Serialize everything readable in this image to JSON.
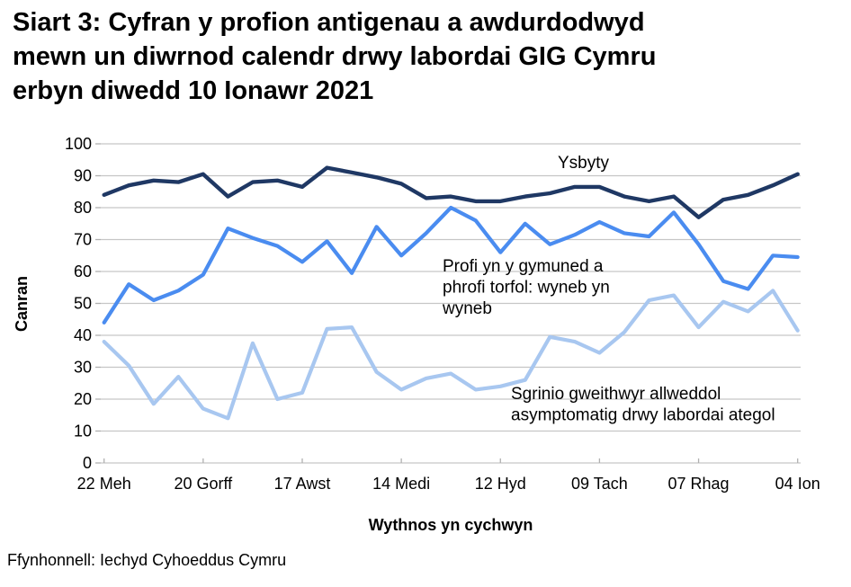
{
  "title": {
    "lines": [
      "Siart 3: Cyfran y profion antigenau a awdurdodwyd",
      "mewn un diwrnod calendr drwy labordai GIG Cymru",
      "erbyn diwedd 10 Ionawr 2021"
    ]
  },
  "source": "Ffynhonnell: Iechyd Cyhoeddus Cymru",
  "chart_data": {
    "type": "line",
    "title": "Siart 3: Cyfran y profion antigenau a awdurdodwyd mewn un diwrnod calendr drwy labordai GIG Cymru erbyn diwedd 10 Ionawr 2021",
    "xlabel": "Wythnos yn cychwyn",
    "ylabel": "Canran",
    "ylim": [
      0,
      100
    ],
    "ytick_interval": 10,
    "ytick_labels": [
      "0",
      "10",
      "20",
      "30",
      "40",
      "50",
      "60",
      "70",
      "80",
      "90",
      "100"
    ],
    "grid": true,
    "n_points": 29,
    "x_tick_labels": [
      "22 Meh",
      "20 Gorff",
      "17 Awst",
      "14 Medi",
      "12 Hyd",
      "09 Tach",
      "07 Rhag",
      "04 Ion"
    ],
    "x_tick_indices": [
      0,
      4,
      8,
      12,
      16,
      20,
      24,
      28
    ],
    "legend_position": "inline-annotations",
    "colors": {
      "hospital_line": "#1f3864",
      "community_line": "#4a8cf0",
      "screening_line": "#a8c7f0",
      "gridline": "#c6c6c6",
      "axis": "#b0b0b0",
      "text": "#000000"
    },
    "series": [
      {
        "name": "Ysbyty",
        "color": "#1f3864",
        "values": [
          84,
          87,
          88.5,
          88,
          90.5,
          83.5,
          88,
          88.5,
          86.5,
          92.5,
          91,
          89.5,
          87.5,
          83,
          83.5,
          82,
          82,
          83.5,
          84.5,
          86.5,
          86.5,
          83.5,
          82,
          83.5,
          77,
          82.5,
          84,
          87,
          90.5
        ]
      },
      {
        "name": "Profi yn y gymuned a phrofi torfol: wyneb yn wyneb",
        "color": "#4a8cf0",
        "values": [
          44,
          56,
          51,
          54,
          59,
          73.5,
          70.5,
          68,
          63,
          69.5,
          59.5,
          74,
          65,
          72,
          80,
          76,
          66,
          75,
          68.5,
          71.5,
          75.5,
          72,
          71,
          78.5,
          68.5,
          57,
          54.5,
          65,
          64.5
        ]
      },
      {
        "name": "Sgrinio gweithwyr allweddol asymptomatig drwy labordai ategol",
        "color": "#a8c7f0",
        "values": [
          38,
          30.5,
          18.5,
          27,
          17,
          14,
          37.5,
          20,
          22,
          42,
          42.5,
          28.5,
          23,
          26.5,
          28,
          23,
          24,
          26,
          39.5,
          38,
          34.5,
          41,
          51,
          52.5,
          42.5,
          50.5,
          47.5,
          54,
          41.5
        ]
      }
    ],
    "annotations": [
      {
        "series": 0,
        "lines": [
          "Ysbyty"
        ]
      },
      {
        "series": 1,
        "lines": [
          "Profi yn y gymuned a",
          "phrofi torfol: wyneb yn",
          "wyneb"
        ]
      },
      {
        "series": 2,
        "lines": [
          "Sgrinio gweithwyr allweddol",
          "asymptomatig drwy labordai ategol"
        ]
      }
    ]
  }
}
